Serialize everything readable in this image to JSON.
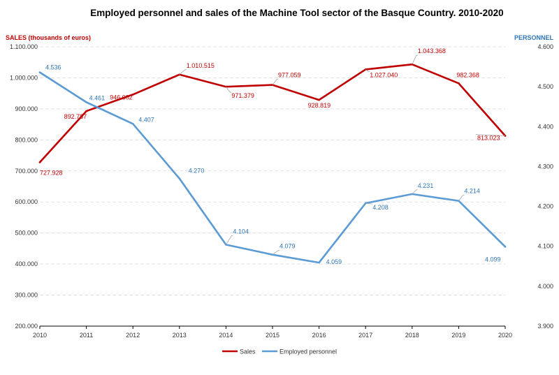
{
  "chart_data": {
    "type": "line",
    "title": "Employed personnel and sales of the Machine Tool sector of the Basque Country. 2010-2020",
    "x": [
      "2010",
      "2011",
      "2012",
      "2013",
      "2014",
      "2015",
      "2016",
      "2017",
      "2018",
      "2019",
      "2020"
    ],
    "left_axis": {
      "label": "SALES (thousands of euros)",
      "ylim": [
        200000,
        1100000
      ],
      "step": 100000,
      "ticks": [
        "200.000",
        "300.000",
        "400.000",
        "500.000",
        "600.000",
        "700.000",
        "800.000",
        "900.000",
        "1.000.000",
        "1.100.000"
      ]
    },
    "right_axis": {
      "label": "PERSONNEL",
      "ylim": [
        3900,
        4600
      ],
      "step": 100,
      "ticks": [
        "3.900",
        "4.000",
        "4.100",
        "4.200",
        "4.300",
        "4.400",
        "4.500",
        "4.600"
      ]
    },
    "grid": true,
    "legend_position": "bottom-center",
    "series": [
      {
        "name": "Sales",
        "axis": "left",
        "color": "#c00000",
        "values": [
          727928,
          892787,
          946002,
          1010515,
          971379,
          977059,
          928819,
          1027040,
          1043368,
          982368,
          813023
        ],
        "labels": [
          "727.928",
          "892.787",
          "946.002",
          "1.010.515",
          "971.379",
          "977.059",
          "928.819",
          "1.027.040",
          "1.043.368",
          "982.368",
          "813.023"
        ]
      },
      {
        "name": "Employed personnel",
        "axis": "right",
        "color": "#5b9bd5",
        "values": [
          4536,
          4461,
          4407,
          4270,
          4104,
          4079,
          4059,
          4208,
          4231,
          4214,
          4099
        ],
        "labels": [
          "4.536",
          "4.461",
          "4.407",
          "4.270",
          "4.104",
          "4.079",
          "4.059",
          "4.208",
          "4.231",
          "4.214",
          "4.099"
        ]
      }
    ]
  }
}
